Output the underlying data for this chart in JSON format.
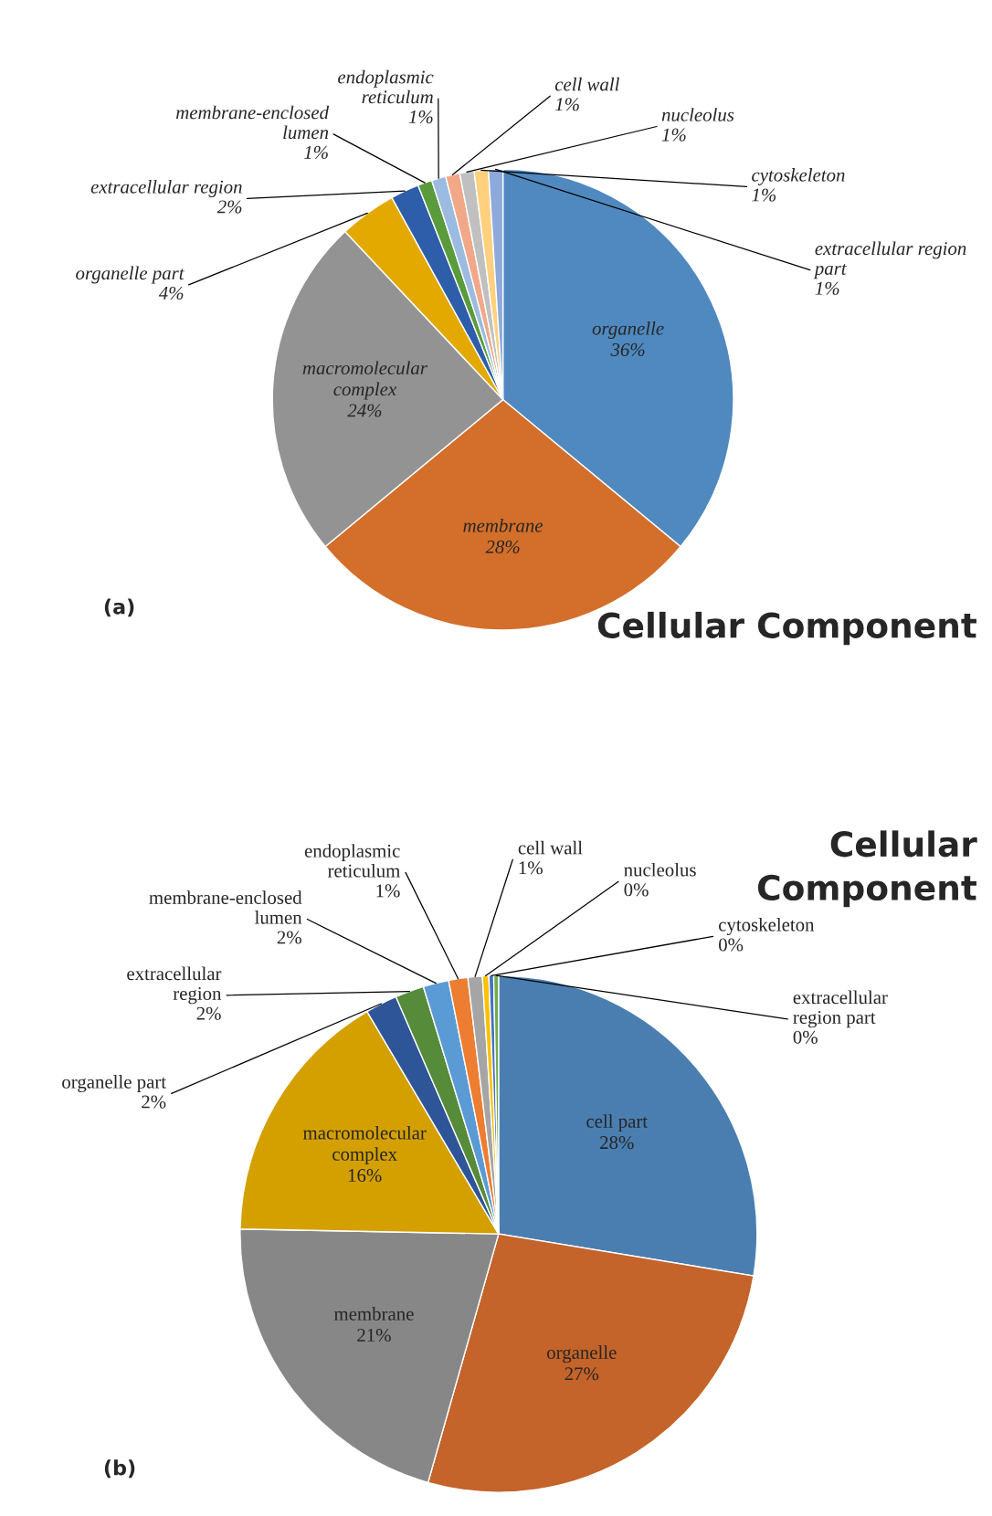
{
  "chart_data": [
    {
      "type": "pie",
      "title": "Cellular Component",
      "categories": [
        "organelle",
        "membrane",
        "macromolecular complex",
        "organelle part",
        "extracellular region",
        "membrane-enclosed lumen",
        "endoplasmic reticulum",
        "cell wall",
        "nucleolus",
        "cytoskeleton",
        "extracellular region part"
      ],
      "values": [
        36,
        28,
        24,
        4,
        2,
        1,
        1,
        1,
        1,
        1,
        1
      ],
      "value_labels": [
        "36%",
        "28%",
        "24%",
        "4%",
        "2%",
        "1%",
        "1%",
        "1%",
        "1%",
        "1%",
        "1%"
      ],
      "colors": [
        "#5089c0",
        "#d36f2b",
        "#939393",
        "#e3a900",
        "#2e5ea9",
        "#5a9b3c",
        "#9bbbe0",
        "#f1a888",
        "#c0c0c0",
        "#ffd17f",
        "#8ea9db"
      ],
      "annotations": [
        "(a)"
      ]
    },
    {
      "type": "pie",
      "title": "Cellular Component",
      "categories": [
        "cell part",
        "organelle",
        "membrane",
        "macromolecular complex",
        "organelle part",
        "extracellular region",
        "membrane-enclosed lumen",
        "endoplasmic reticulum",
        "cell wall",
        "nucleolus",
        "cytoskeleton",
        "extracellular region part"
      ],
      "values": [
        27.6,
        26.8,
        20.9,
        16.2,
        2.0,
        1.8,
        1.6,
        1.2,
        0.9,
        0.4,
        0.3,
        0.3
      ],
      "value_labels": [
        "28%",
        "27%",
        "21%",
        "16%",
        "2%",
        "2%",
        "2%",
        "1%",
        "1%",
        "0%",
        "0%",
        "0%"
      ],
      "colors": [
        "#4a7eb0",
        "#c4632a",
        "#878787",
        "#d4a000",
        "#2e5597",
        "#558b39",
        "#5b9bd5",
        "#ed7d31",
        "#a5a5a5",
        "#ffc000",
        "#4472c4",
        "#70ad47"
      ],
      "annotations": [
        "(b)"
      ]
    }
  ]
}
